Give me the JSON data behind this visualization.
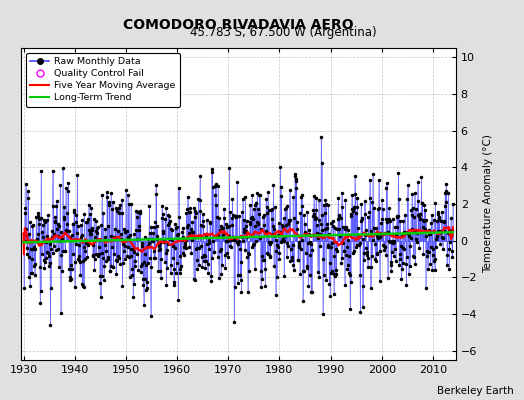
{
  "title": "COMODORO RIVADAVIA AERO",
  "subtitle": "45.783 S, 67.500 W (Argentina)",
  "ylabel": "Temperature Anomaly (°C)",
  "credit": "Berkeley Earth",
  "year_start": 1930,
  "year_end": 2014,
  "ylim": [
    -6.5,
    10.5
  ],
  "yticks": [
    -6,
    -4,
    -2,
    0,
    2,
    4,
    6,
    8,
    10
  ],
  "xticks": [
    1930,
    1940,
    1950,
    1960,
    1970,
    1980,
    1990,
    2000,
    2010
  ],
  "raw_line_color": "#4444ff",
  "raw_dot_color": "#000000",
  "ma_color": "#ff0000",
  "trend_color": "#00cc00",
  "qc_color": "#ff00ff",
  "background_color": "#e0e0e0",
  "plot_bg_color": "#ffffff"
}
